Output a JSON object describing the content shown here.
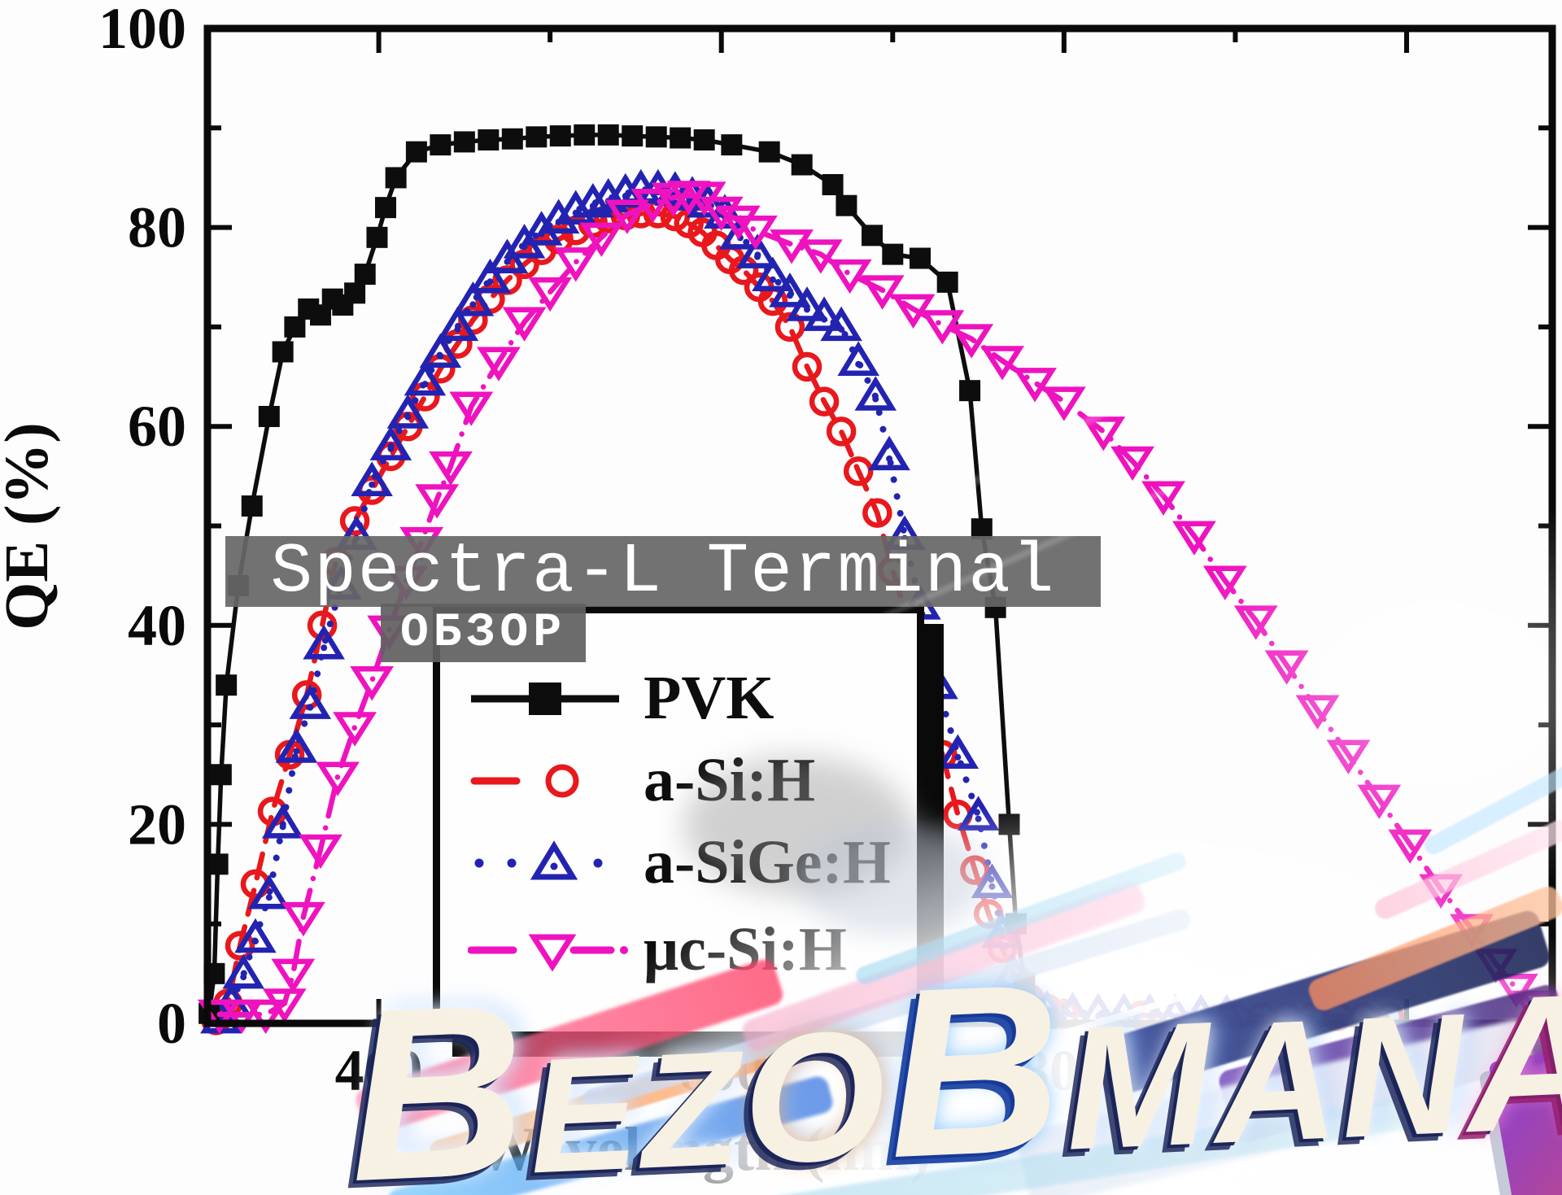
{
  "chart_data": {
    "type": "line",
    "title": "",
    "xlabel": "Wavelength (nm)",
    "ylabel": "QE (%)",
    "x_range": [
      300,
      1085
    ],
    "y_range": [
      0,
      100
    ],
    "x_major_ticks": [
      400,
      600,
      800,
      1000
    ],
    "x_minor_ticks": [
      500,
      700,
      900
    ],
    "y_major_ticks": [
      0,
      20,
      40,
      60,
      80,
      100
    ],
    "y_minor_ticks": [
      10,
      30,
      50,
      70,
      90
    ],
    "grid": false,
    "legend_position": "inside-bottom-center",
    "series": [
      {
        "name": "PVK",
        "color": "#0d0d0d",
        "line": "solid",
        "marker": "square-filled",
        "points": [
          [
            301,
            1
          ],
          [
            304,
            5
          ],
          [
            306,
            16
          ],
          [
            308,
            25
          ],
          [
            311,
            34
          ],
          [
            318,
            44
          ],
          [
            326,
            52
          ],
          [
            336,
            61
          ],
          [
            344,
            67.5
          ],
          [
            351,
            70
          ],
          [
            359,
            71.8
          ],
          [
            366,
            71.2
          ],
          [
            373,
            72.8
          ],
          [
            379,
            72.2
          ],
          [
            386,
            73.4
          ],
          [
            392,
            75.3
          ],
          [
            399,
            79
          ],
          [
            404,
            82
          ],
          [
            410,
            85
          ],
          [
            422,
            87.6
          ],
          [
            436,
            88.3
          ],
          [
            450,
            88.6
          ],
          [
            464,
            88.8
          ],
          [
            478,
            88.9
          ],
          [
            492,
            89.1
          ],
          [
            506,
            89.2
          ],
          [
            520,
            89.3
          ],
          [
            534,
            89.3
          ],
          [
            548,
            89.2
          ],
          [
            562,
            89.1
          ],
          [
            576,
            89
          ],
          [
            590,
            88.8
          ],
          [
            606,
            88.3
          ],
          [
            628,
            87.6
          ],
          [
            647,
            86.3
          ],
          [
            665,
            84.3
          ],
          [
            673,
            82.2
          ],
          [
            688,
            79.2
          ],
          [
            700,
            77.3
          ],
          [
            716,
            76.9
          ],
          [
            732,
            74.5
          ],
          [
            745,
            63.6
          ],
          [
            752,
            49.7
          ],
          [
            760,
            41.8
          ],
          [
            768,
            20
          ],
          [
            772,
            10
          ],
          [
            777,
            4
          ],
          [
            783,
            1.5
          ],
          [
            790,
            0.5
          ]
        ]
      },
      {
        "name": "a-Si:H",
        "color": "#e8181c",
        "line": "dashed",
        "marker": "circle-open",
        "points": [
          [
            305,
            0.3
          ],
          [
            312,
            2
          ],
          [
            319,
            7.8
          ],
          [
            328,
            14
          ],
          [
            338,
            21.3
          ],
          [
            348,
            27
          ],
          [
            358,
            33
          ],
          [
            367,
            40
          ],
          [
            375,
            46.4
          ],
          [
            386,
            50.5
          ],
          [
            396,
            53.6
          ],
          [
            407,
            57
          ],
          [
            417,
            60
          ],
          [
            427,
            63
          ],
          [
            436,
            65.8
          ],
          [
            446,
            68.3
          ],
          [
            455,
            70.7
          ],
          [
            465,
            72.8
          ],
          [
            475,
            74.7
          ],
          [
            485,
            76.3
          ],
          [
            495,
            77.7
          ],
          [
            505,
            78.8
          ],
          [
            515,
            79.7
          ],
          [
            525,
            80.4
          ],
          [
            534,
            80.9
          ],
          [
            544,
            81.2
          ],
          [
            553,
            81.4
          ],
          [
            563,
            81.4
          ],
          [
            573,
            81.1
          ],
          [
            581,
            80.4
          ],
          [
            589,
            79.5
          ],
          [
            597,
            78.2
          ],
          [
            605,
            76.8
          ],
          [
            613,
            75.7
          ],
          [
            622,
            74
          ],
          [
            630,
            72.6
          ],
          [
            640,
            70
          ],
          [
            650,
            66
          ],
          [
            660,
            62.5
          ],
          [
            670,
            59.5
          ],
          [
            680,
            55.5
          ],
          [
            691,
            51.3
          ],
          [
            700,
            45.5
          ],
          [
            710,
            39.9
          ],
          [
            720,
            33
          ],
          [
            729,
            27
          ],
          [
            738,
            21
          ],
          [
            748,
            15.4
          ],
          [
            756,
            11
          ],
          [
            764,
            7.5
          ],
          [
            772,
            4.5
          ],
          [
            780,
            2.5
          ],
          [
            790,
            1.5
          ],
          [
            800,
            0.9
          ],
          [
            845,
            0.8
          ],
          [
            900,
            0.7
          ],
          [
            915,
            0.7
          ],
          [
            930,
            0.7
          ],
          [
            945,
            0.7
          ],
          [
            960,
            0.7
          ],
          [
            975,
            0.65
          ],
          [
            990,
            0.65
          ]
        ]
      },
      {
        "name": "a-SiGe:H",
        "color": "#2323b2",
        "line": "dotted",
        "marker": "triangle-up-open-dot",
        "points": [
          [
            308,
            0.4
          ],
          [
            314,
            2
          ],
          [
            321,
            4.9
          ],
          [
            328,
            8.5
          ],
          [
            336,
            12.9
          ],
          [
            344,
            20
          ],
          [
            352,
            27.6
          ],
          [
            360,
            32
          ],
          [
            368,
            38
          ],
          [
            378,
            44
          ],
          [
            387,
            49
          ],
          [
            396,
            54.4
          ],
          [
            407,
            58
          ],
          [
            417,
            61.2
          ],
          [
            427,
            64.5
          ],
          [
            436,
            67.3
          ],
          [
            446,
            70
          ],
          [
            455,
            72.5
          ],
          [
            465,
            74.8
          ],
          [
            475,
            76.8
          ],
          [
            485,
            78.3
          ],
          [
            495,
            79.6
          ],
          [
            505,
            80.8
          ],
          [
            515,
            81.7
          ],
          [
            525,
            82.4
          ],
          [
            534,
            82.9
          ],
          [
            544,
            83.4
          ],
          [
            553,
            83.8
          ],
          [
            563,
            83.8
          ],
          [
            573,
            83.6
          ],
          [
            583,
            83.1
          ],
          [
            592,
            82.4
          ],
          [
            602,
            81.3
          ],
          [
            611,
            79.2
          ],
          [
            621,
            77.3
          ],
          [
            630,
            75
          ],
          [
            640,
            73.4
          ],
          [
            650,
            72
          ],
          [
            660,
            71
          ],
          [
            670,
            70
          ],
          [
            680,
            66.5
          ],
          [
            690,
            63
          ],
          [
            698,
            57
          ],
          [
            707,
            49
          ],
          [
            716,
            42
          ],
          [
            726,
            34
          ],
          [
            738,
            27
          ],
          [
            750,
            20.8
          ],
          [
            758,
            14
          ],
          [
            764,
            9
          ],
          [
            770,
            5
          ],
          [
            776,
            2.5
          ],
          [
            782,
            1.6
          ],
          [
            790,
            1.3
          ],
          [
            805,
            1.1
          ],
          [
            820,
            1
          ],
          [
            835,
            1
          ],
          [
            850,
            1
          ],
          [
            865,
            0.9
          ],
          [
            880,
            0.9
          ],
          [
            895,
            0.9
          ]
        ]
      },
      {
        "name": "μc-Si:H",
        "color": "#ef12bf",
        "line": "dashdot",
        "marker": "triangle-down-open",
        "points": [
          [
            307,
            0.9
          ],
          [
            320,
            0.9
          ],
          [
            334,
            0.9
          ],
          [
            345,
            2
          ],
          [
            350,
            5
          ],
          [
            356,
            10.7
          ],
          [
            366,
            17.5
          ],
          [
            376,
            24.8
          ],
          [
            386,
            29.8
          ],
          [
            396,
            34.4
          ],
          [
            406,
            39.5
          ],
          [
            416,
            44.5
          ],
          [
            425,
            48.4
          ],
          [
            434,
            52.7
          ],
          [
            442,
            56
          ],
          [
            454,
            62
          ],
          [
            470,
            66.5
          ],
          [
            485,
            70.5
          ],
          [
            500,
            73.5
          ],
          [
            515,
            76.5
          ],
          [
            530,
            79
          ],
          [
            545,
            81.3
          ],
          [
            560,
            82.4
          ],
          [
            572,
            83
          ],
          [
            581,
            83.2
          ],
          [
            590,
            83.1
          ],
          [
            600,
            81.6
          ],
          [
            610,
            80.7
          ],
          [
            620,
            79.7
          ],
          [
            641,
            78.3
          ],
          [
            658,
            77.3
          ],
          [
            675,
            75.3
          ],
          [
            694,
            73.7
          ],
          [
            712,
            71.8
          ],
          [
            729,
            70.2
          ],
          [
            746,
            68.8
          ],
          [
            764,
            66.6
          ],
          [
            783,
            64.4
          ],
          [
            800,
            62.5
          ],
          [
            823,
            59.5
          ],
          [
            840,
            56.5
          ],
          [
            858,
            53
          ],
          [
            876,
            49
          ],
          [
            894,
            44.5
          ],
          [
            912,
            40.5
          ],
          [
            930,
            36
          ],
          [
            948,
            31.5
          ],
          [
            966,
            27
          ],
          [
            984,
            22.5
          ],
          [
            1002,
            18
          ],
          [
            1020,
            13.5
          ],
          [
            1038,
            9.5
          ],
          [
            1052,
            6
          ],
          [
            1064,
            3.5
          ],
          [
            1074,
            1.8
          ],
          [
            1082,
            0.8
          ]
        ]
      }
    ]
  },
  "overlays": {
    "banner_text": "Spectra-L Terminal",
    "obzor_text": "ОБЗОР"
  },
  "watermark": {
    "text": "BEZOBMANA",
    "letters": [
      "B",
      "E",
      "Z",
      "O",
      "B",
      "M",
      "A",
      "N",
      "A"
    ]
  }
}
